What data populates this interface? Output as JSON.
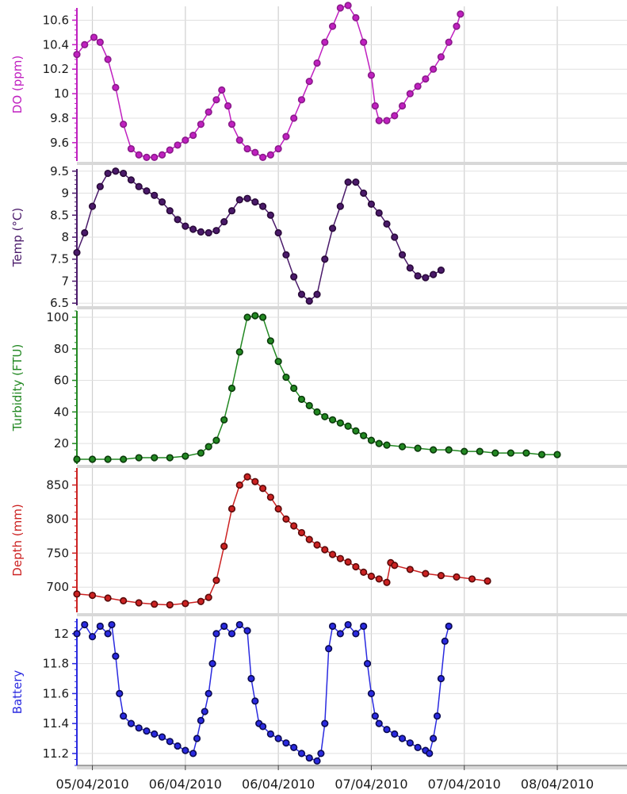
{
  "chart_data": {
    "type": "line",
    "x_axis": {
      "tick_labels": [
        "05/04/2010",
        "06/04/2010",
        "06/04/2010",
        "07/04/2010",
        "07/04/2010",
        "08/04/2010"
      ],
      "tick_positions_hours": [
        12,
        24,
        36,
        48,
        60,
        72
      ],
      "x_range_hours": [
        10,
        81
      ],
      "grid": true
    },
    "panels": [
      {
        "name": "do",
        "ylabel": "DO (ppm)",
        "color": "#c020c0",
        "marker_color": "#8a1a8a",
        "ylim": [
          9.45,
          10.7
        ],
        "yticks": [
          9.6,
          9.8,
          10,
          10.2,
          10.4,
          10.6
        ],
        "ytick_labels": [
          "9.6",
          "9.8",
          "10",
          "10.2",
          "10.4",
          "10.6"
        ],
        "points": [
          [
            10,
            10.32
          ],
          [
            11,
            10.4
          ],
          [
            12.2,
            10.46
          ],
          [
            13,
            10.42
          ],
          [
            14,
            10.28
          ],
          [
            15,
            10.05
          ],
          [
            16,
            9.75
          ],
          [
            17,
            9.55
          ],
          [
            18,
            9.5
          ],
          [
            19,
            9.48
          ],
          [
            20,
            9.48
          ],
          [
            21,
            9.5
          ],
          [
            22,
            9.54
          ],
          [
            23,
            9.58
          ],
          [
            24,
            9.62
          ],
          [
            25,
            9.66
          ],
          [
            26,
            9.75
          ],
          [
            27,
            9.85
          ],
          [
            28,
            9.95
          ],
          [
            28.7,
            10.03
          ],
          [
            29.5,
            9.9
          ],
          [
            30,
            9.75
          ],
          [
            31,
            9.62
          ],
          [
            32,
            9.55
          ],
          [
            33,
            9.52
          ],
          [
            34,
            9.48
          ],
          [
            35,
            9.5
          ],
          [
            36,
            9.55
          ],
          [
            37,
            9.65
          ],
          [
            38,
            9.8
          ],
          [
            39,
            9.95
          ],
          [
            40,
            10.1
          ],
          [
            41,
            10.25
          ],
          [
            42,
            10.42
          ],
          [
            43,
            10.55
          ],
          [
            44,
            10.7
          ],
          [
            45,
            10.72
          ],
          [
            46,
            10.62
          ],
          [
            47,
            10.42
          ],
          [
            48,
            10.15
          ],
          [
            48.5,
            9.9
          ],
          [
            49,
            9.78
          ],
          [
            50,
            9.78
          ],
          [
            51,
            9.82
          ],
          [
            52,
            9.9
          ],
          [
            53,
            10.0
          ],
          [
            54,
            10.06
          ],
          [
            55,
            10.12
          ],
          [
            56,
            10.2
          ],
          [
            57,
            10.3
          ],
          [
            58,
            10.42
          ],
          [
            59,
            10.55
          ],
          [
            59.5,
            10.65
          ]
        ]
      },
      {
        "name": "temp",
        "ylabel": "Temp (°C)",
        "color": "#4a1a6a",
        "marker_color": "#2a0a3a",
        "ylim": [
          6.45,
          9.55
        ],
        "yticks": [
          6.5,
          7,
          7.5,
          8,
          8.5,
          9,
          9.5
        ],
        "ytick_labels": [
          "6.5",
          "7",
          "7.5",
          "8",
          "8.5",
          "9",
          "9.5"
        ],
        "points": [
          [
            10,
            7.65
          ],
          [
            11,
            8.1
          ],
          [
            12,
            8.7
          ],
          [
            13,
            9.15
          ],
          [
            14,
            9.45
          ],
          [
            15,
            9.5
          ],
          [
            16,
            9.45
          ],
          [
            17,
            9.3
          ],
          [
            18,
            9.15
          ],
          [
            19,
            9.05
          ],
          [
            20,
            8.95
          ],
          [
            21,
            8.8
          ],
          [
            22,
            8.6
          ],
          [
            23,
            8.4
          ],
          [
            24,
            8.25
          ],
          [
            25,
            8.18
          ],
          [
            26,
            8.12
          ],
          [
            27,
            8.1
          ],
          [
            28,
            8.15
          ],
          [
            29,
            8.35
          ],
          [
            30,
            8.6
          ],
          [
            31,
            8.85
          ],
          [
            32,
            8.88
          ],
          [
            33,
            8.8
          ],
          [
            34,
            8.7
          ],
          [
            35,
            8.5
          ],
          [
            36,
            8.1
          ],
          [
            37,
            7.6
          ],
          [
            38,
            7.1
          ],
          [
            39,
            6.7
          ],
          [
            40,
            6.55
          ],
          [
            41,
            6.7
          ],
          [
            42,
            7.5
          ],
          [
            43,
            8.2
          ],
          [
            44,
            8.7
          ],
          [
            45,
            9.25
          ],
          [
            46,
            9.25
          ],
          [
            47,
            9.0
          ],
          [
            48,
            8.75
          ],
          [
            49,
            8.55
          ],
          [
            50,
            8.3
          ],
          [
            51,
            8.0
          ],
          [
            52,
            7.6
          ],
          [
            53,
            7.3
          ],
          [
            54,
            7.12
          ],
          [
            55,
            7.08
          ],
          [
            56,
            7.15
          ],
          [
            57,
            7.25
          ]
        ]
      },
      {
        "name": "turbidity",
        "ylabel": "Turbidity (FTU)",
        "color": "#228822",
        "marker_color": "#0a3a0a",
        "ylim": [
          7,
          104
        ],
        "yticks": [
          20,
          40,
          60,
          80,
          100
        ],
        "ytick_labels": [
          "20",
          "40",
          "60",
          "80",
          "100"
        ],
        "points": [
          [
            10,
            10
          ],
          [
            12,
            10
          ],
          [
            14,
            10
          ],
          [
            16,
            10
          ],
          [
            18,
            11
          ],
          [
            20,
            11
          ],
          [
            22,
            11
          ],
          [
            24,
            12
          ],
          [
            26,
            14
          ],
          [
            27,
            18
          ],
          [
            28,
            22
          ],
          [
            29,
            35
          ],
          [
            30,
            55
          ],
          [
            31,
            78
          ],
          [
            32,
            100
          ],
          [
            33,
            101
          ],
          [
            34,
            100
          ],
          [
            35,
            85
          ],
          [
            36,
            72
          ],
          [
            37,
            62
          ],
          [
            38,
            55
          ],
          [
            39,
            48
          ],
          [
            40,
            44
          ],
          [
            41,
            40
          ],
          [
            42,
            37
          ],
          [
            43,
            35
          ],
          [
            44,
            33
          ],
          [
            45,
            31
          ],
          [
            46,
            28
          ],
          [
            47,
            25
          ],
          [
            48,
            22
          ],
          [
            49,
            20
          ],
          [
            50,
            19
          ],
          [
            52,
            18
          ],
          [
            54,
            17
          ],
          [
            56,
            16
          ],
          [
            58,
            16
          ],
          [
            60,
            15
          ],
          [
            62,
            15
          ],
          [
            64,
            14
          ],
          [
            66,
            14
          ],
          [
            68,
            14
          ],
          [
            70,
            13
          ],
          [
            72,
            13
          ]
        ]
      },
      {
        "name": "depth",
        "ylabel": "Depth (mm)",
        "color": "#cc2222",
        "marker_color": "#5a0a0a",
        "ylim": [
          663,
          875
        ],
        "yticks": [
          700,
          750,
          800,
          850
        ],
        "ytick_labels": [
          "700",
          "750",
          "800",
          "850"
        ],
        "points": [
          [
            10,
            690
          ],
          [
            12,
            688
          ],
          [
            14,
            684
          ],
          [
            16,
            680
          ],
          [
            18,
            677
          ],
          [
            20,
            675
          ],
          [
            22,
            674
          ],
          [
            24,
            676
          ],
          [
            26,
            679
          ],
          [
            27,
            685
          ],
          [
            28,
            710
          ],
          [
            29,
            760
          ],
          [
            30,
            815
          ],
          [
            31,
            850
          ],
          [
            32,
            862
          ],
          [
            33,
            855
          ],
          [
            34,
            845
          ],
          [
            35,
            832
          ],
          [
            36,
            815
          ],
          [
            37,
            800
          ],
          [
            38,
            790
          ],
          [
            39,
            780
          ],
          [
            40,
            770
          ],
          [
            41,
            762
          ],
          [
            42,
            755
          ],
          [
            43,
            748
          ],
          [
            44,
            742
          ],
          [
            45,
            737
          ],
          [
            46,
            730
          ],
          [
            47,
            722
          ],
          [
            48,
            716
          ],
          [
            49,
            712
          ],
          [
            50,
            707
          ],
          [
            50.5,
            736
          ],
          [
            51,
            732
          ],
          [
            53,
            726
          ],
          [
            55,
            720
          ],
          [
            57,
            717
          ],
          [
            59,
            715
          ],
          [
            61,
            712
          ],
          [
            63,
            709
          ]
        ]
      },
      {
        "name": "battery",
        "ylabel": "Battery",
        "color": "#2a2ae0",
        "marker_color": "#0a0a50",
        "ylim": [
          11.12,
          12.1
        ],
        "yticks": [
          11.2,
          11.4,
          11.6,
          11.8,
          12
        ],
        "ytick_labels": [
          "11.2",
          "11.4",
          "11.6",
          "11.8",
          "12"
        ],
        "points": [
          [
            10,
            12.0
          ],
          [
            11,
            12.06
          ],
          [
            12,
            11.98
          ],
          [
            13,
            12.05
          ],
          [
            14,
            12.0
          ],
          [
            14.5,
            12.06
          ],
          [
            15,
            11.85
          ],
          [
            15.5,
            11.6
          ],
          [
            16,
            11.45
          ],
          [
            17,
            11.4
          ],
          [
            18,
            11.37
          ],
          [
            19,
            11.35
          ],
          [
            20,
            11.33
          ],
          [
            21,
            11.31
          ],
          [
            22,
            11.28
          ],
          [
            23,
            11.25
          ],
          [
            24,
            11.22
          ],
          [
            25,
            11.2
          ],
          [
            25.5,
            11.3
          ],
          [
            26,
            11.42
          ],
          [
            26.5,
            11.48
          ],
          [
            27,
            11.6
          ],
          [
            27.5,
            11.8
          ],
          [
            28,
            12.0
          ],
          [
            29,
            12.05
          ],
          [
            30,
            12.0
          ],
          [
            31,
            12.06
          ],
          [
            32,
            12.02
          ],
          [
            32.5,
            11.7
          ],
          [
            33,
            11.55
          ],
          [
            33.5,
            11.4
          ],
          [
            34,
            11.38
          ],
          [
            35,
            11.33
          ],
          [
            36,
            11.3
          ],
          [
            37,
            11.27
          ],
          [
            38,
            11.24
          ],
          [
            39,
            11.2
          ],
          [
            40,
            11.17
          ],
          [
            41,
            11.15
          ],
          [
            41.5,
            11.2
          ],
          [
            42,
            11.4
          ],
          [
            42.5,
            11.9
          ],
          [
            43,
            12.05
          ],
          [
            44,
            12.0
          ],
          [
            45,
            12.06
          ],
          [
            46,
            12.0
          ],
          [
            47,
            12.05
          ],
          [
            47.5,
            11.8
          ],
          [
            48,
            11.6
          ],
          [
            48.5,
            11.45
          ],
          [
            49,
            11.4
          ],
          [
            50,
            11.36
          ],
          [
            51,
            11.33
          ],
          [
            52,
            11.3
          ],
          [
            53,
            11.27
          ],
          [
            54,
            11.24
          ],
          [
            55,
            11.22
          ],
          [
            55.5,
            11.2
          ],
          [
            56,
            11.3
          ],
          [
            56.5,
            11.45
          ],
          [
            57,
            11.7
          ],
          [
            57.5,
            11.95
          ],
          [
            58,
            12.05
          ]
        ]
      }
    ]
  }
}
